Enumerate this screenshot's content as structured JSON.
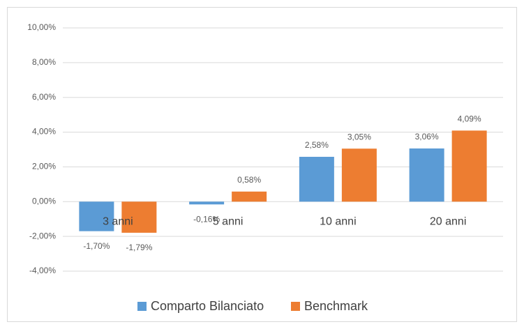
{
  "chart_data": {
    "type": "bar",
    "categories": [
      "3 anni",
      "5 anni",
      "10 anni",
      "20 anni"
    ],
    "series": [
      {
        "name": "Comparto Bilanciato",
        "color": "#5b9bd5",
        "values": [
          -1.7,
          -0.16,
          2.58,
          3.06
        ],
        "value_labels": [
          "-1,70%",
          "-0,16%",
          "2,58%",
          "3,06%"
        ]
      },
      {
        "name": "Benchmark",
        "color": "#ed7d31",
        "values": [
          -1.79,
          0.58,
          3.05,
          4.09
        ],
        "value_labels": [
          "-1,79%",
          "0,58%",
          "3,05%",
          "4,09%"
        ]
      }
    ],
    "ylim": [
      -4,
      10
    ],
    "yticks": [
      {
        "value": -4,
        "label": "-4,00%"
      },
      {
        "value": -2,
        "label": "-2,00%"
      },
      {
        "value": 0,
        "label": "0,00%"
      },
      {
        "value": 2,
        "label": "2,00%"
      },
      {
        "value": 4,
        "label": "4,00%"
      },
      {
        "value": 6,
        "label": "6,00%"
      },
      {
        "value": 8,
        "label": "8,00%"
      },
      {
        "value": 10,
        "label": "10,00%"
      }
    ],
    "grid": true,
    "legend": "bottom"
  }
}
